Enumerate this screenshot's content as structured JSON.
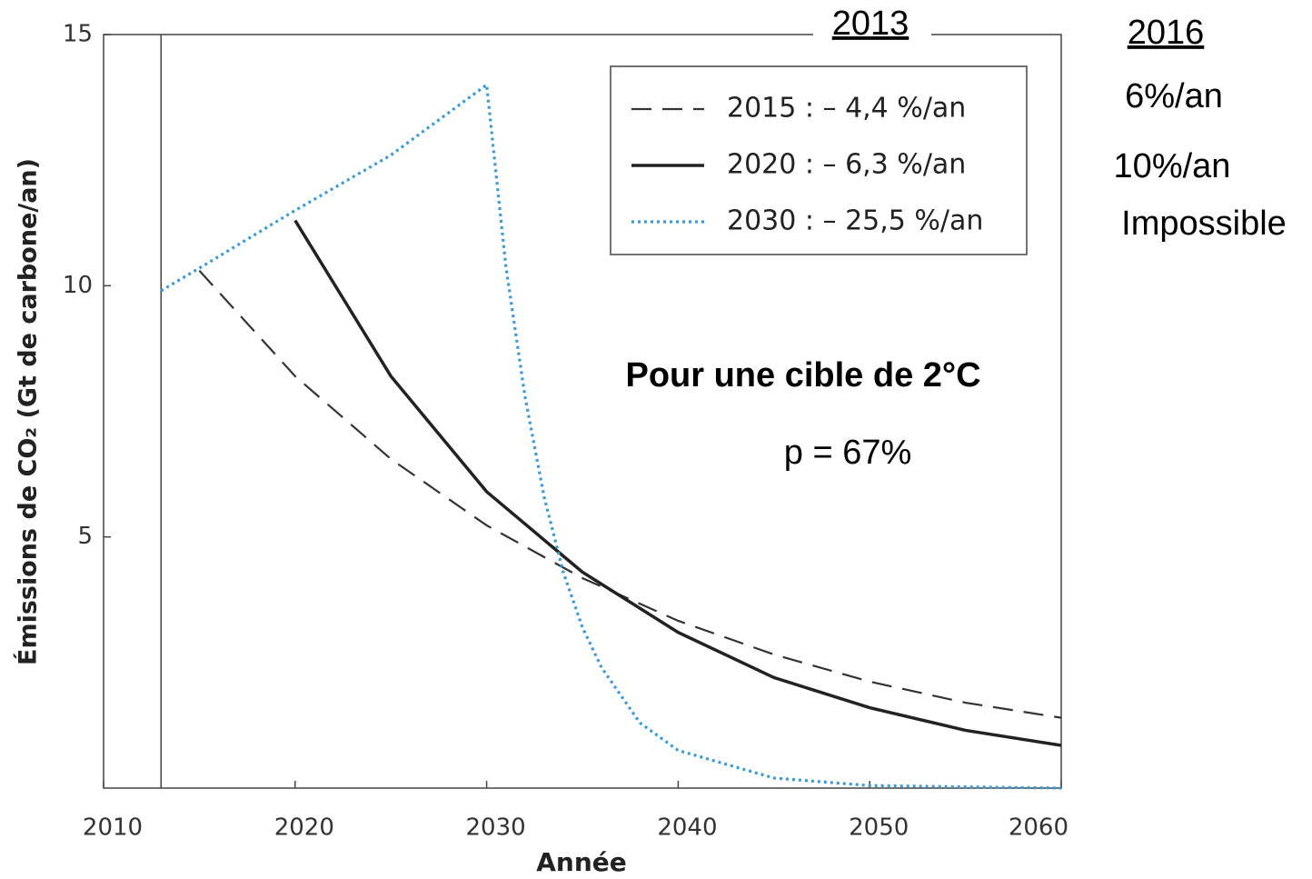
{
  "chart_data": {
    "type": "line",
    "xlabel": "Année",
    "ylabel": "Émissions de CO₂ (Gt de carbone/an)",
    "xlim": [
      2010,
      2060
    ],
    "ylim": [
      0,
      15
    ],
    "xticks": [
      2010,
      2020,
      2030,
      2040,
      2050,
      2060
    ],
    "yticks": [
      5,
      10,
      15
    ],
    "vline": 2013,
    "grid": false,
    "legend": "upper right",
    "series": [
      {
        "name": "2015 : – 4,4 %/an",
        "color": "#333333",
        "style": "dashed",
        "x": [
          2015,
          2020,
          2025,
          2030,
          2035,
          2040,
          2045,
          2050,
          2055,
          2060
        ],
        "values": [
          10.3,
          8.2,
          6.55,
          5.23,
          4.18,
          3.33,
          2.66,
          2.12,
          1.7,
          1.4
        ]
      },
      {
        "name": "2020 : – 6,3 %/an",
        "color": "#222222",
        "style": "solid",
        "x": [
          2020,
          2025,
          2030,
          2035,
          2040,
          2045,
          2050,
          2055,
          2060
        ],
        "values": [
          11.3,
          8.2,
          5.9,
          4.3,
          3.1,
          2.2,
          1.6,
          1.15,
          0.85
        ]
      },
      {
        "name": "2030 : – 25,5 %/an",
        "color": "#3a9ad9",
        "style": "dotted",
        "x": [
          2013,
          2015,
          2020,
          2025,
          2030,
          2031,
          2032,
          2033,
          2034,
          2035,
          2036,
          2038,
          2040,
          2045,
          2050,
          2060
        ],
        "values": [
          9.9,
          10.35,
          11.5,
          12.6,
          14.0,
          10.4,
          7.8,
          5.8,
          4.3,
          3.2,
          2.4,
          1.3,
          0.75,
          0.2,
          0.05,
          0.0
        ]
      }
    ],
    "annotations": [
      "2013",
      "2016",
      "6%/an",
      "10%/an",
      "Impossible",
      "Pour une cible de 2°C",
      "p = 67%"
    ]
  }
}
